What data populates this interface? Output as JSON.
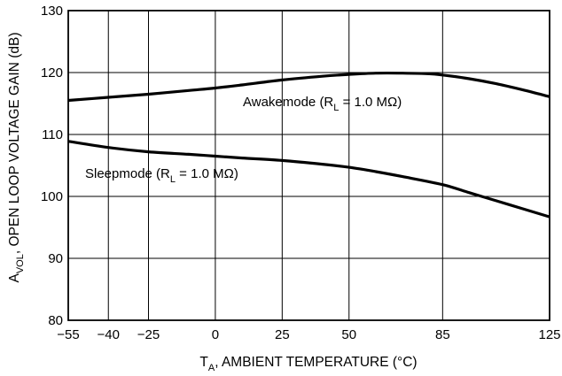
{
  "chart_data": {
    "type": "line",
    "xlabel": {
      "main": "T",
      "sub": "A",
      "rest": ", AMBIENT TEMPERATURE (°C)"
    },
    "ylabel": {
      "main": "A",
      "sub": "VOL",
      "rest": ", OPEN LOOP VOLTAGE GAIN (dB)"
    },
    "xlim": [
      -55,
      125
    ],
    "ylim": [
      80,
      130
    ],
    "x_ticks": [
      -55,
      -40,
      -25,
      0,
      25,
      50,
      85,
      125
    ],
    "x_tick_labels": [
      "−55",
      "−40",
      "−25",
      "0",
      "25",
      "50",
      "85",
      "125"
    ],
    "y_ticks": [
      80,
      90,
      100,
      110,
      120,
      130
    ],
    "y_tick_labels": [
      "80",
      "90",
      "100",
      "110",
      "120",
      "130"
    ],
    "grid": true,
    "series": [
      {
        "name": "Awakemode (RL = 1.0 MΩ)",
        "label": {
          "pre": "Awakemode (R",
          "sub": "L",
          "post": " = 1.0 MΩ)"
        },
        "x": [
          -55,
          -40,
          -25,
          -10,
          0,
          10,
          25,
          40,
          50,
          60,
          70,
          80,
          85,
          95,
          105,
          115,
          125
        ],
        "y": [
          115.5,
          116.0,
          116.5,
          117.1,
          117.5,
          118.0,
          118.8,
          119.4,
          119.7,
          119.9,
          119.9,
          119.8,
          119.6,
          119.0,
          118.2,
          117.2,
          116.1
        ]
      },
      {
        "name": "Sleepmode (RL = 1.0 MΩ)",
        "label": {
          "pre": "Sleepmode (R",
          "sub": "L",
          "post": " = 1.0 MΩ)"
        },
        "x": [
          -55,
          -40,
          -25,
          -10,
          0,
          10,
          25,
          40,
          50,
          60,
          70,
          85,
          95,
          105,
          115,
          125
        ],
        "y": [
          108.9,
          107.9,
          107.2,
          106.8,
          106.5,
          106.2,
          105.8,
          105.2,
          104.7,
          104.0,
          103.2,
          101.9,
          100.6,
          99.3,
          98.0,
          96.7
        ]
      }
    ]
  }
}
